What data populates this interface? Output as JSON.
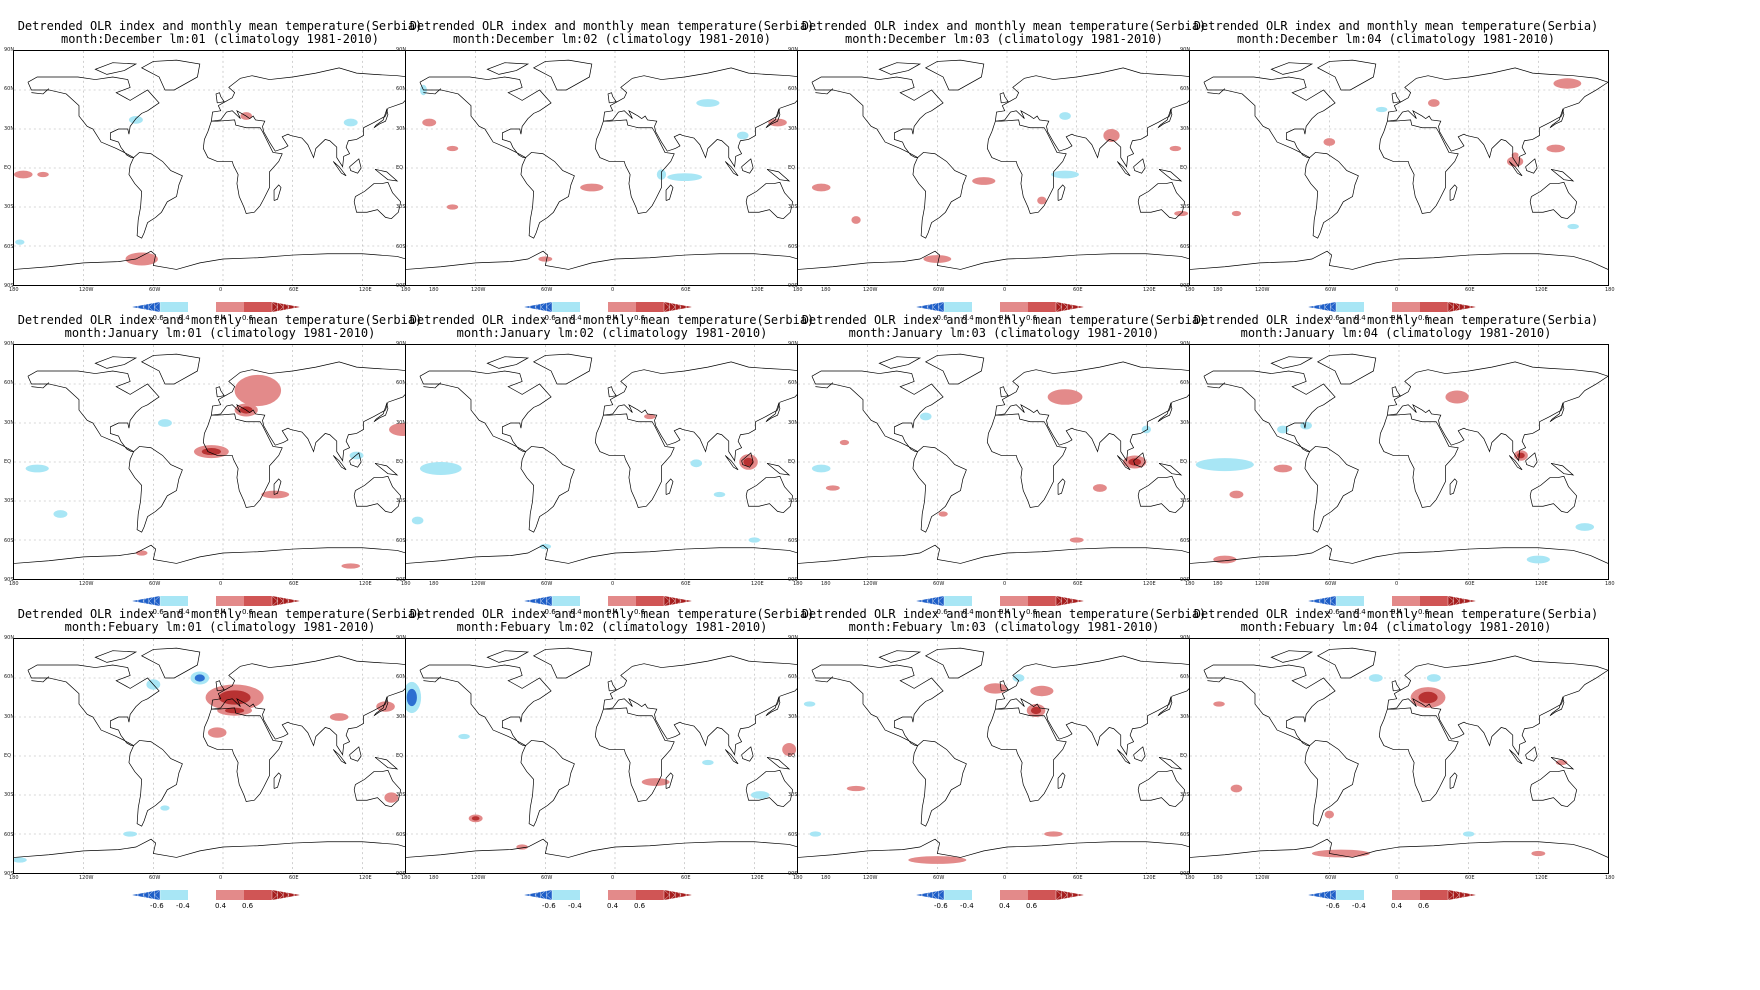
{
  "panels": [
    {
      "line1": "Detrended OLR index and monthly mean temperature(Serbia)",
      "line2": "month:December lm:01 (climatology 1981-2010)"
    },
    {
      "line1": "Detrended OLR index and monthly mean temperature(Serbia)",
      "line2": "month:December lm:02 (climatology 1981-2010)"
    },
    {
      "line1": "Detrended OLR index and monthly mean temperature(Serbia)",
      "line2": "month:December lm:03 (climatology 1981-2010)"
    },
    {
      "line1": "Detrended OLR index and monthly mean temperature(Serbia)",
      "line2": "month:December lm:04 (climatology 1981-2010)"
    },
    {
      "line1": "Detrended OLR index and monthly mean temperature(Serbia)",
      "line2": "month:January lm:01 (climatology 1981-2010)"
    },
    {
      "line1": "Detrended OLR index and monthly mean temperature(Serbia)",
      "line2": "month:January lm:02 (climatology 1981-2010)"
    },
    {
      "line1": "Detrended OLR index and monthly mean temperature(Serbia)",
      "line2": "month:January lm:03 (climatology 1981-2010)"
    },
    {
      "line1": "Detrended OLR index and monthly mean temperature(Serbia)",
      "line2": "month:January lm:04 (climatology 1981-2010)"
    },
    {
      "line1": "Detrended OLR index and monthly mean temperature(Serbia)",
      "line2": "month:Febuary lm:01 (climatology 1981-2010)"
    },
    {
      "line1": "Detrended OLR index and monthly mean temperature(Serbia)",
      "line2": "month:Febuary lm:02 (climatology 1981-2010)"
    },
    {
      "line1": "Detrended OLR index and monthly mean temperature(Serbia)",
      "line2": "month:Febuary lm:03 (climatology 1981-2010)"
    },
    {
      "line1": "Detrended OLR index and monthly mean temperature(Serbia)",
      "line2": "month:Febuary lm:04 (climatology 1981-2010)"
    }
  ],
  "lat_labels": [
    "90N",
    "60N",
    "30N",
    "EQ",
    "30S",
    "60S",
    "90S"
  ],
  "lon_labels": [
    "180",
    "120W",
    "60W",
    "0",
    "60E",
    "120E",
    "180"
  ],
  "colorbar": {
    "labels": [
      "-0.6",
      "-0.4",
      "0.4",
      "0.6"
    ],
    "colors": {
      "neg_strong": "#1f5fc8",
      "neg_mid": "#6fa8e6",
      "neg_weak": "#a8e6f5",
      "pos_weak": "#e38a8a",
      "pos_mid": "#d05555",
      "pos_strong": "#a61e1e"
    }
  },
  "colors": {
    "land_outline": "#000000",
    "grid": "#b0b0b0",
    "positive": "#e38a8a",
    "negative": "#a8e6f5",
    "positive_strong": "#b83232",
    "negative_strong": "#2c6fd1"
  }
}
